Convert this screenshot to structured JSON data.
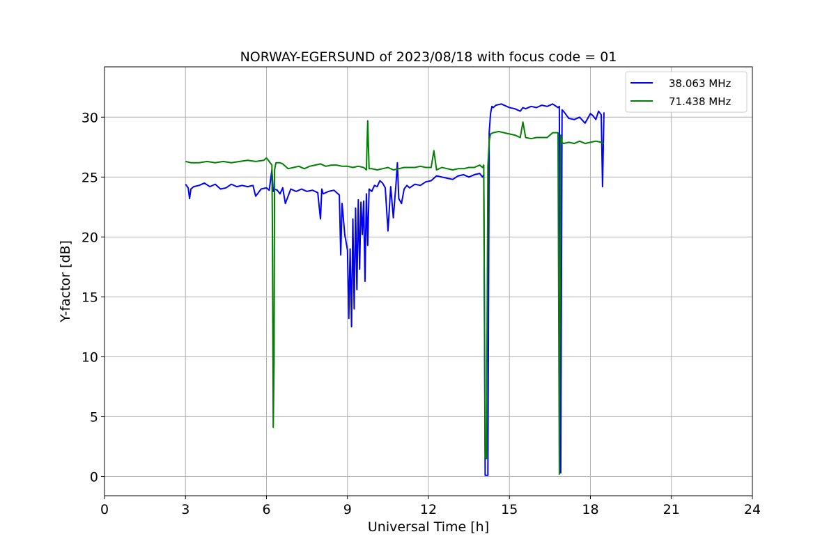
{
  "chart_data": {
    "type": "line",
    "title": "NORWAY-EGERSUND of 2023/08/18 with focus code = 01",
    "xlabel": "Universal Time [h]",
    "ylabel": "Y-factor [dB]",
    "xlim": [
      0,
      24
    ],
    "ylim": [
      -1.6,
      34.2
    ],
    "xticks": [
      0,
      3,
      6,
      9,
      12,
      15,
      18,
      21,
      24
    ],
    "yticks": [
      0,
      5,
      10,
      15,
      20,
      25,
      30
    ],
    "grid": true,
    "legend_position": "top-right",
    "series": [
      {
        "name": "38.063 MHz",
        "color": "#0000ff",
        "x": [
          3.0,
          3.1,
          3.15,
          3.2,
          3.3,
          3.5,
          3.7,
          3.9,
          4.1,
          4.3,
          4.5,
          4.7,
          4.9,
          5.1,
          5.3,
          5.5,
          5.6,
          5.8,
          6.0,
          6.1,
          6.2,
          6.25,
          6.3,
          6.4,
          6.5,
          6.6,
          6.7,
          6.9,
          7.1,
          7.3,
          7.5,
          7.7,
          7.9,
          8.0,
          8.05,
          8.1,
          8.3,
          8.5,
          8.6,
          8.7,
          8.75,
          8.8,
          8.9,
          9.0,
          9.05,
          9.1,
          9.15,
          9.2,
          9.25,
          9.3,
          9.35,
          9.4,
          9.45,
          9.5,
          9.55,
          9.6,
          9.65,
          9.7,
          9.75,
          9.8,
          9.9,
          10.0,
          10.1,
          10.2,
          10.3,
          10.4,
          10.5,
          10.6,
          10.7,
          10.8,
          10.85,
          10.9,
          11.0,
          11.1,
          11.2,
          11.3,
          11.5,
          11.7,
          11.9,
          12.1,
          12.3,
          12.5,
          12.7,
          12.9,
          13.1,
          13.3,
          13.5,
          13.7,
          13.9,
          14.0,
          14.05,
          14.1,
          14.15,
          14.2,
          14.25,
          14.3,
          14.35,
          14.4,
          14.5,
          14.7,
          14.9,
          15.0,
          15.2,
          15.4,
          15.5,
          15.6,
          15.8,
          16.0,
          16.2,
          16.4,
          16.6,
          16.8,
          16.85,
          16.9,
          16.95,
          17.0,
          17.2,
          17.4,
          17.6,
          17.8,
          18.0,
          18.1,
          18.2,
          18.3,
          18.4,
          18.45,
          18.5
        ],
        "y": [
          24.4,
          24.1,
          23.2,
          24.0,
          24.2,
          24.3,
          24.5,
          24.2,
          24.4,
          24.0,
          24.1,
          24.4,
          24.2,
          24.3,
          24.2,
          24.3,
          23.4,
          24.0,
          24.1,
          23.9,
          25.6,
          23.8,
          24.0,
          23.9,
          23.6,
          24.1,
          22.8,
          24.0,
          23.8,
          24.0,
          23.8,
          23.9,
          23.7,
          21.5,
          24.0,
          23.6,
          23.8,
          23.9,
          23.7,
          23.5,
          18.5,
          22.8,
          20.2,
          18.9,
          13.2,
          19.0,
          12.5,
          21.5,
          14.0,
          22.4,
          15.6,
          23.1,
          17.3,
          22.9,
          20.2,
          23.0,
          16.3,
          23.6,
          19.3,
          24.0,
          23.8,
          24.3,
          24.2,
          24.7,
          24.5,
          24.1,
          20.5,
          24.2,
          21.6,
          24.5,
          26.2,
          23.2,
          22.8,
          24.0,
          24.3,
          24.1,
          24.4,
          24.3,
          24.6,
          24.7,
          25.1,
          25.0,
          24.9,
          24.8,
          25.1,
          25.2,
          25.0,
          25.2,
          25.3,
          25.0,
          25.2,
          0.1,
          0.1,
          0.1,
          28.7,
          30.3,
          30.9,
          30.8,
          31.0,
          31.1,
          30.9,
          30.8,
          30.7,
          30.5,
          30.8,
          30.7,
          30.9,
          30.8,
          31.0,
          30.9,
          31.1,
          30.8,
          30.9,
          0.3,
          30.6,
          30.5,
          29.9,
          29.8,
          30.0,
          29.5,
          30.3,
          30.1,
          29.8,
          30.5,
          30.2,
          24.2,
          30.4
        ]
      },
      {
        "name": "71.438 MHz",
        "color": "#008000",
        "x": [
          3.0,
          3.2,
          3.5,
          3.8,
          4.1,
          4.4,
          4.7,
          5.0,
          5.3,
          5.6,
          5.9,
          6.0,
          6.1,
          6.2,
          6.22,
          6.25,
          6.28,
          6.3,
          6.35,
          6.5,
          6.6,
          6.7,
          6.8,
          7.0,
          7.2,
          7.4,
          7.6,
          7.8,
          8.0,
          8.2,
          8.4,
          8.6,
          8.8,
          9.0,
          9.2,
          9.4,
          9.6,
          9.7,
          9.75,
          9.8,
          9.9,
          10.1,
          10.3,
          10.5,
          10.7,
          10.9,
          11.1,
          11.3,
          11.5,
          11.7,
          11.9,
          12.1,
          12.2,
          12.3,
          12.5,
          12.7,
          12.9,
          13.1,
          13.3,
          13.5,
          13.7,
          13.9,
          14.0,
          14.05,
          14.1,
          14.15,
          14.2,
          14.25,
          14.3,
          14.4,
          14.6,
          14.8,
          15.0,
          15.2,
          15.4,
          15.5,
          15.6,
          15.8,
          16.0,
          16.2,
          16.4,
          16.6,
          16.8,
          16.85,
          16.9,
          16.95,
          17.0,
          17.2,
          17.4,
          17.6,
          17.8,
          18.0,
          18.2,
          18.4,
          18.5
        ],
        "y": [
          26.3,
          26.2,
          26.2,
          26.3,
          26.2,
          26.3,
          26.2,
          26.3,
          26.4,
          26.3,
          26.4,
          26.6,
          26.3,
          26.0,
          21.0,
          4.1,
          9.5,
          25.6,
          26.2,
          26.2,
          26.1,
          25.9,
          25.7,
          25.8,
          25.9,
          25.7,
          25.9,
          26.0,
          26.1,
          25.9,
          26.0,
          26.0,
          25.9,
          25.9,
          25.8,
          25.9,
          25.8,
          25.6,
          29.7,
          25.7,
          25.7,
          25.6,
          25.7,
          25.8,
          25.6,
          25.7,
          25.8,
          25.8,
          25.8,
          25.9,
          25.8,
          25.8,
          27.2,
          25.6,
          25.8,
          25.7,
          25.6,
          25.7,
          25.7,
          25.8,
          25.8,
          26.0,
          25.8,
          26.0,
          1.6,
          1.5,
          25.9,
          28.0,
          28.6,
          28.7,
          28.8,
          28.7,
          28.6,
          28.5,
          28.3,
          29.6,
          28.3,
          28.2,
          28.3,
          28.3,
          28.3,
          28.7,
          28.7,
          0.2,
          28.5,
          27.9,
          27.8,
          27.9,
          27.8,
          28.0,
          27.8,
          27.9,
          28.0,
          27.9,
          27.8
        ]
      }
    ]
  }
}
